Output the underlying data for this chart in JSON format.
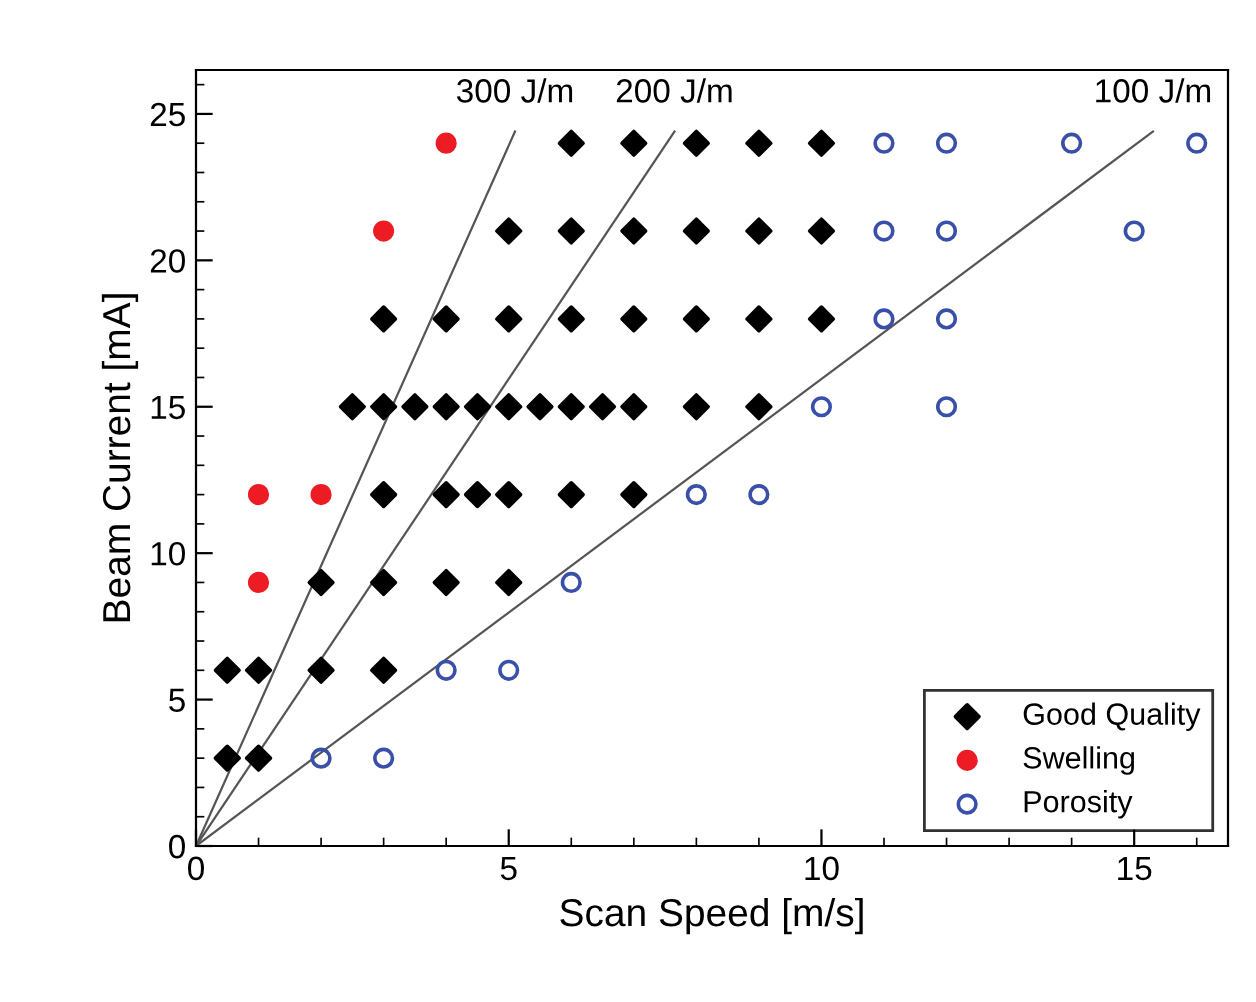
{
  "chart_data": {
    "type": "scatter",
    "xlabel": "Scan Speed [m/s]",
    "ylabel": "Beam Current [mA]",
    "xlim": [
      0,
      16.5
    ],
    "ylim": [
      0,
      26.5
    ],
    "xticks": [
      0,
      5,
      10,
      15
    ],
    "yticks": [
      0,
      5,
      10,
      15,
      20,
      25
    ],
    "grid": false,
    "legend": "bottom right",
    "series": [
      {
        "name": "Good Quality",
        "color": "#000000",
        "marker": "diamond",
        "x": [
          0.5,
          1,
          0.5,
          1,
          2,
          3,
          2,
          3,
          4,
          5,
          3,
          4,
          4.5,
          5,
          6,
          7,
          2.5,
          3,
          3.5,
          4,
          4.5,
          5,
          5.5,
          6,
          6.5,
          7,
          8,
          9,
          3,
          4,
          5,
          6,
          7,
          8,
          9,
          10,
          5,
          6,
          7,
          8,
          9,
          10,
          6,
          7,
          8,
          9,
          10
        ],
        "values": [
          3,
          3,
          6,
          6,
          6,
          6,
          9,
          9,
          9,
          9,
          12,
          12,
          12,
          12,
          12,
          12,
          15,
          15,
          15,
          15,
          15,
          15,
          15,
          15,
          15,
          15,
          15,
          15,
          18,
          18,
          18,
          18,
          18,
          18,
          18,
          18,
          21,
          21,
          21,
          21,
          21,
          21,
          24,
          24,
          24,
          24,
          24
        ]
      },
      {
        "name": "Swelling",
        "color": "#ed1c24",
        "marker": "circle",
        "x": [
          1,
          1,
          2,
          3,
          4
        ],
        "values": [
          9,
          12,
          12,
          21,
          24
        ]
      },
      {
        "name": "Porosity",
        "color": "#3a4fa8",
        "marker": "circle",
        "x": [
          2,
          3,
          4,
          5,
          6,
          8,
          9,
          10,
          12,
          11,
          12,
          11,
          12,
          15,
          11,
          12,
          14,
          16
        ],
        "values": [
          3,
          3,
          6,
          6,
          9,
          12,
          12,
          15,
          15,
          18,
          18,
          21,
          21,
          21,
          24,
          24,
          24,
          24
        ]
      },
      {
        "type": "line",
        "color": "#555555",
        "x": [
          0,
          5.1
        ],
        "values": [
          0,
          24.4
        ]
      },
      {
        "type": "line",
        "color": "#555555",
        "x": [
          0,
          7.65
        ],
        "values": [
          0,
          24.4
        ]
      },
      {
        "type": "line",
        "color": "#555555",
        "x": [
          0,
          15.3
        ],
        "values": [
          0,
          24.4
        ]
      }
    ],
    "annotations": [
      {
        "text": "300 J/m",
        "x": 5.1,
        "y": 24.4
      },
      {
        "text": "200 J/m",
        "x": 7.65,
        "y": 24.4
      },
      {
        "text": "100 J/m",
        "x": 15.3,
        "y": 24.4
      }
    ]
  }
}
